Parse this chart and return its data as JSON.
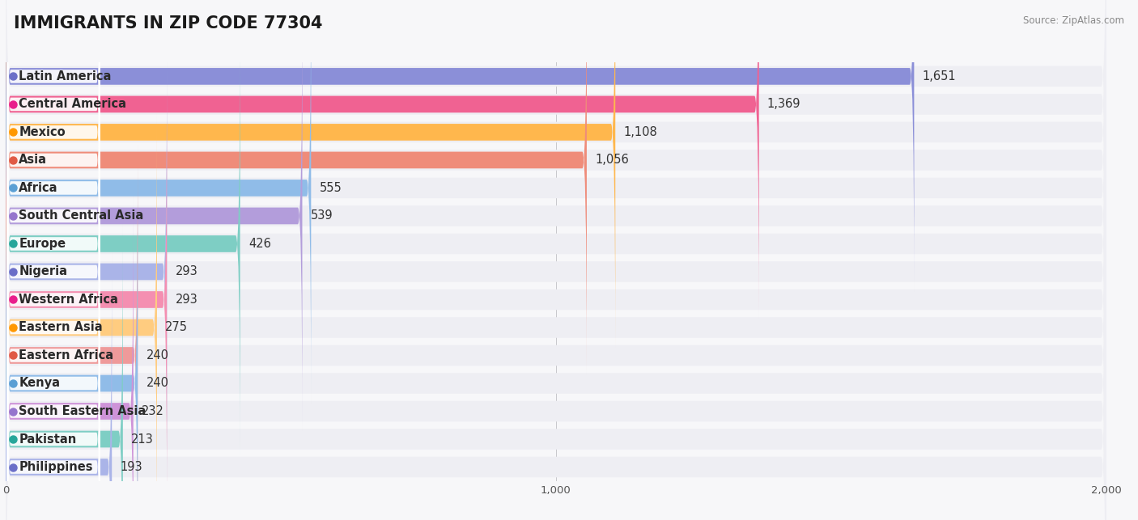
{
  "title": "IMMIGRANTS IN ZIP CODE 77304",
  "source": "Source: ZipAtlas.com",
  "categories": [
    "Latin America",
    "Central America",
    "Mexico",
    "Asia",
    "Africa",
    "South Central Asia",
    "Europe",
    "Nigeria",
    "Western Africa",
    "Eastern Asia",
    "Eastern Africa",
    "Kenya",
    "South Eastern Asia",
    "Pakistan",
    "Philippines"
  ],
  "values": [
    1651,
    1369,
    1108,
    1056,
    555,
    539,
    426,
    293,
    293,
    275,
    240,
    240,
    232,
    213,
    193
  ],
  "bar_colors": [
    "#8b8fd8",
    "#f06292",
    "#ffb74d",
    "#ef8c7a",
    "#90bce8",
    "#b39ddb",
    "#7ecec4",
    "#aab4e8",
    "#f48fb1",
    "#ffcc80",
    "#ef9a9a",
    "#90bce8",
    "#ce93d8",
    "#7ecec4",
    "#aab4e8"
  ],
  "dot_colors": [
    "#6b6fc8",
    "#e91e8c",
    "#ff9800",
    "#e05a45",
    "#5a9fd4",
    "#9575cd",
    "#26a69a",
    "#6b6fc8",
    "#e91e8c",
    "#ff9800",
    "#e05a45",
    "#5a9fd4",
    "#9575cd",
    "#26a69a",
    "#6b6fc8"
  ],
  "xlim": [
    0,
    2000
  ],
  "bg_color": "#f7f7f9",
  "row_bg_color": "#eeeef3",
  "bar_bg_alpha": 1.0,
  "title_fontsize": 15,
  "label_fontsize": 10.5,
  "value_fontsize": 10.5
}
